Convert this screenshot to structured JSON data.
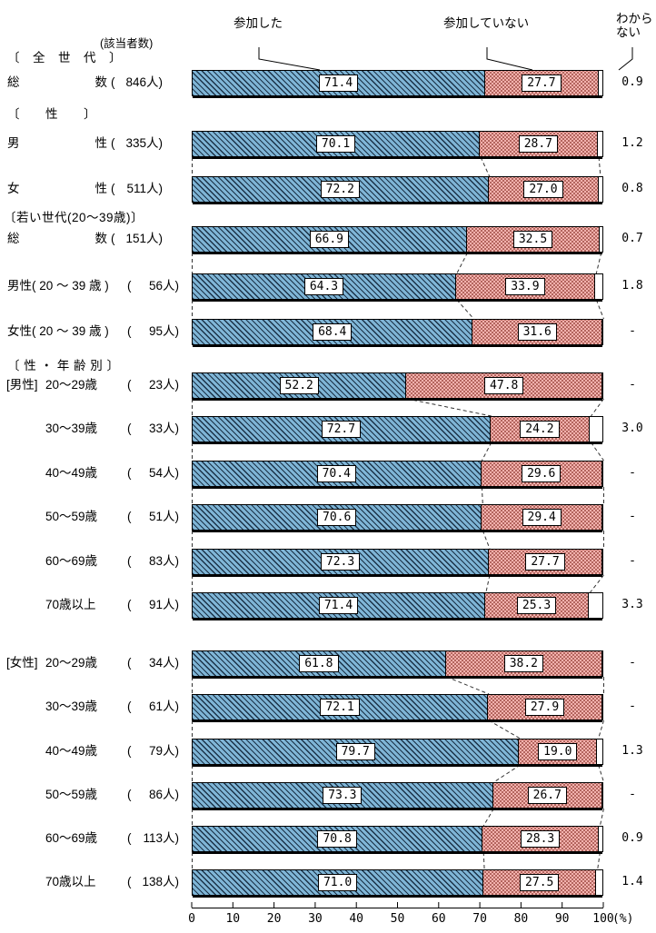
{
  "legend": {
    "participated": "参加した",
    "not_participated": "参加していない",
    "dont_know": "わから\nない"
  },
  "respondents_label": "(該当者数)",
  "count_format": {
    "open": "(",
    "close": "人)"
  },
  "chart_data": {
    "type": "bar",
    "stacked": true,
    "orientation": "horizontal",
    "series": [
      "参加した",
      "参加していない",
      "わからない"
    ],
    "xlim": [
      0,
      100
    ],
    "x_ticks": [
      0,
      10,
      20,
      30,
      40,
      50,
      60,
      70,
      80,
      90,
      100
    ],
    "x_unit_label": "(%)",
    "colors": {
      "participated_fill": "#7FB5D6",
      "participated_hatch": "#0D2034",
      "not_participated_fill": "#F3B2AE",
      "not_participated_dot": "#9E4B43",
      "dont_know_fill": "#FFFFFF"
    },
    "sections": [
      {
        "header": "〔　全　世　代　〕",
        "groups": [
          {
            "prefix": null,
            "rows": [
              {
                "label": "総数",
                "spread": true,
                "n": "846",
                "values": [
                  71.4,
                  27.7,
                  0.9
                ],
                "value_labels": [
                  "71.4",
                  "27.7",
                  "0.9"
                ]
              }
            ]
          }
        ]
      },
      {
        "header": "〔　　性　　〕",
        "groups": [
          {
            "prefix": null,
            "rows": [
              {
                "label": "男性",
                "spread": true,
                "n": "335",
                "values": [
                  70.1,
                  28.7,
                  1.2
                ],
                "value_labels": [
                  "70.1",
                  "28.7",
                  "1.2"
                ]
              },
              {
                "label": "女性",
                "spread": true,
                "n": "511",
                "values": [
                  72.2,
                  27.0,
                  0.8
                ],
                "value_labels": [
                  "72.2",
                  "27.0",
                  "0.8"
                ]
              }
            ]
          }
        ]
      },
      {
        "header": "〔若い世代(20〜39歳)〕",
        "groups": [
          {
            "prefix": null,
            "rows": [
              {
                "label": "総数",
                "spread": true,
                "n": "151",
                "values": [
                  66.9,
                  32.5,
                  0.7
                ],
                "value_labels": [
                  "66.9",
                  "32.5",
                  "0.7"
                ]
              },
              {
                "label": "男性( 20 〜 39 歳 )",
                "n": "56",
                "values": [
                  64.3,
                  33.9,
                  1.8
                ],
                "value_labels": [
                  "64.3",
                  "33.9",
                  "1.8"
                ]
              },
              {
                "label": "女性( 20 〜 39 歳 )",
                "n": "95",
                "values": [
                  68.4,
                  31.6,
                  null
                ],
                "value_labels": [
                  "68.4",
                  "31.6",
                  "-"
                ]
              }
            ]
          }
        ]
      },
      {
        "header": "〔 性 ・ 年 齢 別 〕",
        "groups": [
          {
            "prefix": "[男性]",
            "rows": [
              {
                "label": "20〜29歳",
                "indent": true,
                "n": "23",
                "values": [
                  52.2,
                  47.8,
                  null
                ],
                "value_labels": [
                  "52.2",
                  "47.8",
                  "-"
                ]
              },
              {
                "label": "30〜39歳",
                "indent": true,
                "n": "33",
                "values": [
                  72.7,
                  24.2,
                  3.0
                ],
                "value_labels": [
                  "72.7",
                  "24.2",
                  "3.0"
                ]
              },
              {
                "label": "40〜49歳",
                "indent": true,
                "n": "54",
                "values": [
                  70.4,
                  29.6,
                  null
                ],
                "value_labels": [
                  "70.4",
                  "29.6",
                  "-"
                ]
              },
              {
                "label": "50〜59歳",
                "indent": true,
                "n": "51",
                "values": [
                  70.6,
                  29.4,
                  null
                ],
                "value_labels": [
                  "70.6",
                  "29.4",
                  "-"
                ]
              },
              {
                "label": "60〜69歳",
                "indent": true,
                "n": "83",
                "values": [
                  72.3,
                  27.7,
                  null
                ],
                "value_labels": [
                  "72.3",
                  "27.7",
                  "-"
                ]
              },
              {
                "label": "70歳以上",
                "indent": true,
                "n": "91",
                "values": [
                  71.4,
                  25.3,
                  3.3
                ],
                "value_labels": [
                  "71.4",
                  "25.3",
                  "3.3"
                ]
              }
            ]
          },
          {
            "prefix": "[女性]",
            "rows": [
              {
                "label": "20〜29歳",
                "indent": true,
                "n": "34",
                "values": [
                  61.8,
                  38.2,
                  null
                ],
                "value_labels": [
                  "61.8",
                  "38.2",
                  "-"
                ]
              },
              {
                "label": "30〜39歳",
                "indent": true,
                "n": "61",
                "values": [
                  72.1,
                  27.9,
                  null
                ],
                "value_labels": [
                  "72.1",
                  "27.9",
                  "-"
                ]
              },
              {
                "label": "40〜49歳",
                "indent": true,
                "n": "79",
                "values": [
                  79.7,
                  19.0,
                  1.3
                ],
                "value_labels": [
                  "79.7",
                  "19.0",
                  "1.3"
                ]
              },
              {
                "label": "50〜59歳",
                "indent": true,
                "n": "86",
                "values": [
                  73.3,
                  26.7,
                  null
                ],
                "value_labels": [
                  "73.3",
                  "26.7",
                  "-"
                ]
              },
              {
                "label": "60〜69歳",
                "indent": true,
                "n": "113",
                "values": [
                  70.8,
                  28.3,
                  0.9
                ],
                "value_labels": [
                  "70.8",
                  "28.3",
                  "0.9"
                ]
              },
              {
                "label": "70歳以上",
                "indent": true,
                "n": "138",
                "values": [
                  71.0,
                  27.5,
                  1.4
                ],
                "value_labels": [
                  "71.0",
                  "27.5",
                  "1.4"
                ]
              }
            ]
          }
        ]
      }
    ]
  }
}
